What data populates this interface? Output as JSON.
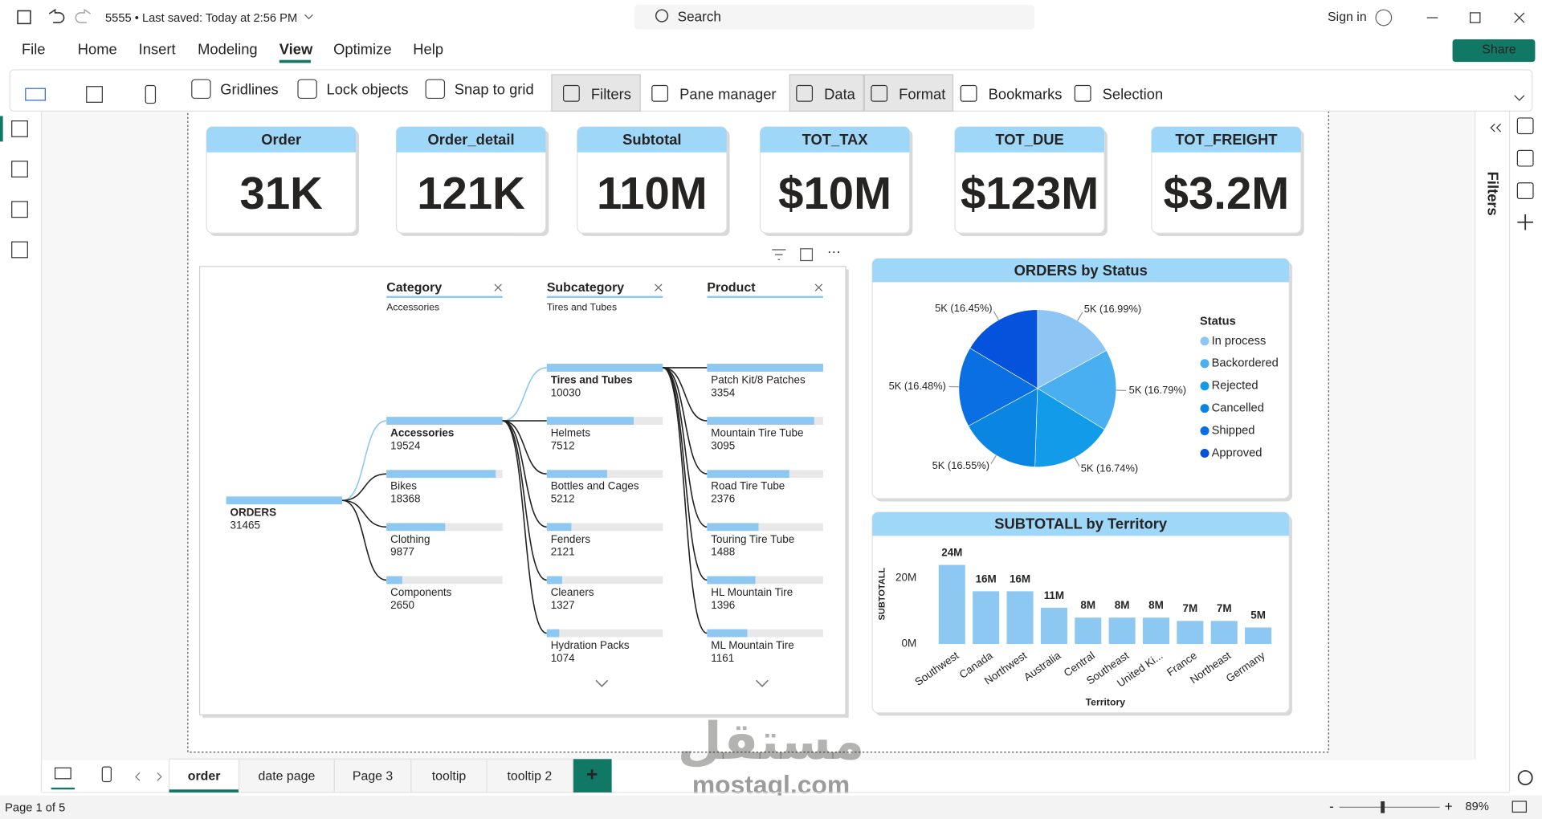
{
  "title_bar": {
    "file_name": "5555",
    "saved_status": "• Last saved: Today at 2:56 PM",
    "search": "Search",
    "sign_in": "Sign in"
  },
  "menu": [
    "File",
    "Home",
    "Insert",
    "Modeling",
    "View",
    "Optimize",
    "Help"
  ],
  "active_menu": "View",
  "share": "Share",
  "ribbon": {
    "checkboxes": [
      "Gridlines",
      "Lock objects",
      "Snap to grid"
    ],
    "buttons": [
      "Filters",
      "Pane manager",
      "Data",
      "Format",
      "Bookmarks",
      "Selection"
    ]
  },
  "filters_pane": "Filters",
  "cards": [
    {
      "title": "Order",
      "value": "31K"
    },
    {
      "title": "Order_detail",
      "value": "121K"
    },
    {
      "title": "Subtotal",
      "value": "110M"
    },
    {
      "title": "TOT_TAX",
      "value": "$10M"
    },
    {
      "title": "TOT_DUE",
      "value": "$123M"
    },
    {
      "title": "TOT_FREIGHT",
      "value": "$3.2M"
    }
  ],
  "chart_data": [
    {
      "type": "decomposition_tree",
      "root": {
        "label": "ORDERS",
        "value": 31465
      },
      "color": "#8cc8f2",
      "levels": [
        {
          "name": "Category",
          "filter": "Accessories",
          "nodes": [
            {
              "label": "Accessories",
              "value": 19524
            },
            {
              "label": "Bikes",
              "value": 18368
            },
            {
              "label": "Clothing",
              "value": 9877
            },
            {
              "label": "Components",
              "value": 2650
            }
          ]
        },
        {
          "name": "Subcategory",
          "filter": "Tires and Tubes",
          "nodes": [
            {
              "label": "Tires and Tubes",
              "value": 10030
            },
            {
              "label": "Helmets",
              "value": 7512
            },
            {
              "label": "Bottles and Cages",
              "value": 5212
            },
            {
              "label": "Fenders",
              "value": 2121
            },
            {
              "label": "Cleaners",
              "value": 1327
            },
            {
              "label": "Hydration Packs",
              "value": 1074
            }
          ]
        },
        {
          "name": "Product",
          "nodes": [
            {
              "label": "Patch Kit/8 Patches",
              "value": 3354
            },
            {
              "label": "Mountain Tire Tube",
              "value": 3095
            },
            {
              "label": "Road Tire Tube",
              "value": 2376
            },
            {
              "label": "Touring Tire Tube",
              "value": 1488
            },
            {
              "label": "HL Mountain Tire",
              "value": 1396
            },
            {
              "label": "ML Mountain Tire",
              "value": 1161
            }
          ]
        }
      ]
    },
    {
      "type": "pie",
      "title": "ORDERS by Status",
      "legend_title": "Status",
      "legend": "right",
      "categories": [
        "In process",
        "Backordered",
        "Rejected",
        "Cancelled",
        "Shipped",
        "Approved"
      ],
      "values": [
        16.99,
        16.79,
        16.74,
        16.55,
        16.48,
        16.45
      ],
      "value_labels": [
        "5K (16.99%)",
        "5K (16.79%)",
        "5K (16.74%)",
        "5K (16.55%)",
        "5K (16.48%)",
        "5K (16.45%)"
      ],
      "colors": [
        "#8dc5f4",
        "#4aaff0",
        "#129be8",
        "#0a86e2",
        "#0a6fe2",
        "#0552dc"
      ]
    },
    {
      "type": "bar",
      "title": "SUBTOTALL by Territory",
      "x_label": "Territory",
      "y_label": "SUBTOTALL",
      "categories": [
        "Southwest",
        "Canada",
        "Northwest",
        "Australia",
        "Central",
        "Southeast",
        "United Ki...",
        "France",
        "Northeast",
        "Germany"
      ],
      "values": [
        24,
        16,
        16,
        11,
        8,
        8,
        8,
        7,
        7,
        5
      ],
      "value_labels": [
        "24M",
        "16M",
        "16M",
        "11M",
        "8M",
        "8M",
        "8M",
        "7M",
        "7M",
        "5M"
      ],
      "color": "#8cc8f2",
      "ylim": [
        0,
        25
      ],
      "yticks": [
        {
          "value": 0,
          "label": "0M"
        },
        {
          "value": 20,
          "label": "20M"
        }
      ]
    }
  ],
  "pages": [
    "order",
    "date page",
    "Page 3",
    "tooltip",
    "tooltip 2"
  ],
  "active_page": "order",
  "add_page": "+",
  "status": {
    "page": "Page 1 of 5",
    "zoom": "89%"
  },
  "watermark": {
    "arabic": "مستقل",
    "latin": "mostaql.com"
  }
}
